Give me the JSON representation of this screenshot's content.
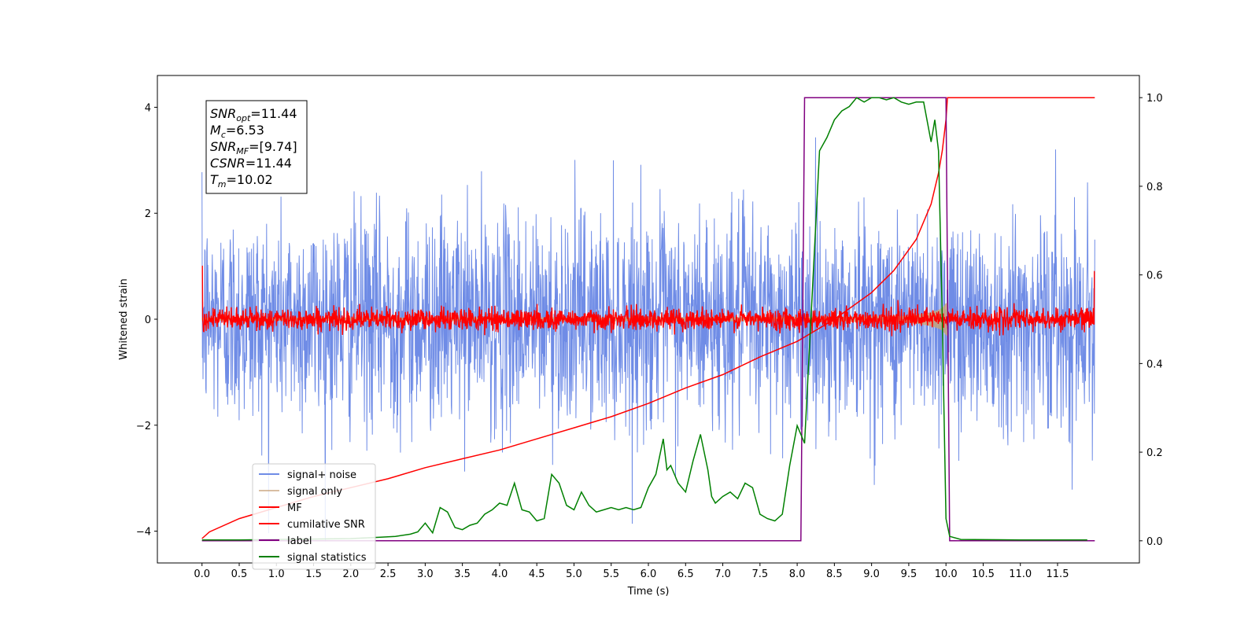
{
  "chart_data": {
    "type": "line",
    "xlabel": "Time (s)",
    "ylabel": "Whitened strain",
    "xlim": [
      -0.6,
      12.6
    ],
    "ylim": [
      -4.6,
      4.6
    ],
    "ylim_right": [
      -0.05,
      1.05
    ],
    "x_ticks": [
      "0.0",
      "0.5",
      "1.0",
      "1.5",
      "2.0",
      "2.5",
      "3.0",
      "3.5",
      "4.0",
      "4.5",
      "5.0",
      "5.5",
      "6.0",
      "6.5",
      "7.0",
      "7.5",
      "8.0",
      "8.5",
      "9.0",
      "9.5",
      "10.0",
      "10.5",
      "11.0",
      "11.5"
    ],
    "y_ticks_left": [
      "4",
      "2",
      "0",
      "−2",
      "−4"
    ],
    "y_ticks_right": [
      "1.0",
      "0.8",
      "0.6",
      "0.4",
      "0.2",
      "0.0"
    ],
    "legend_position": "lower-left",
    "grid": false,
    "info_box": {
      "lines": [
        {
          "sym": "SNR",
          "sub": "opt",
          "value": "=11.44"
        },
        {
          "sym": "M",
          "sub": "c",
          "value": "=6.53"
        },
        {
          "sym": "SNR",
          "sub": "MF",
          "value": "=[9.74]"
        },
        {
          "sym": "CSNR",
          "sub": "",
          "value": "=11.44"
        },
        {
          "sym": "T",
          "sub": "m",
          "value": "=10.02"
        }
      ]
    },
    "series": [
      {
        "name": "signal+ noise",
        "axis": "left",
        "color": "#6f8ce6",
        "kind": "noise",
        "x_range": [
          0,
          12
        ],
        "sigma": 1.0,
        "max_abs": 4.2
      },
      {
        "name": "signal only",
        "axis": "left",
        "color": "#c8a37a",
        "kind": "chirp_envelope",
        "x_range": [
          0,
          10.02
        ],
        "amp_start": 0.03,
        "amp_peak": 0.72,
        "merger": 10.02
      },
      {
        "name": "MF",
        "axis": "left",
        "color": "#ff0000",
        "kind": "noise",
        "x_range": [
          0,
          12
        ],
        "sigma": 0.1,
        "spikes": [
          [
            0.0,
            1.0
          ],
          [
            12.0,
            0.9
          ]
        ]
      },
      {
        "name": "cumilative SNR",
        "axis": "right",
        "color": "#ff0000",
        "x": [
          0.0,
          0.1,
          0.5,
          1.0,
          1.5,
          2.0,
          2.5,
          3.0,
          3.5,
          4.0,
          4.5,
          5.0,
          5.5,
          6.0,
          6.5,
          7.0,
          7.5,
          8.0,
          8.5,
          9.0,
          9.3,
          9.6,
          9.8,
          9.9,
          9.95,
          10.0,
          10.02,
          12.0
        ],
        "y": [
          0.005,
          0.02,
          0.05,
          0.075,
          0.1,
          0.12,
          0.14,
          0.165,
          0.185,
          0.205,
          0.23,
          0.255,
          0.28,
          0.31,
          0.345,
          0.375,
          0.415,
          0.45,
          0.5,
          0.56,
          0.61,
          0.68,
          0.76,
          0.83,
          0.88,
          0.95,
          1.0,
          1.0
        ]
      },
      {
        "name": "label",
        "axis": "right",
        "color": "#800080",
        "x": [
          0.0,
          8.05,
          8.1,
          10.0,
          10.05,
          12.0
        ],
        "y": [
          0.0,
          0.0,
          1.0,
          1.0,
          0.0,
          0.0
        ]
      },
      {
        "name": "signal statistics",
        "axis": "right",
        "color": "#008000",
        "x": [
          0.0,
          0.5,
          1.0,
          1.5,
          2.0,
          2.4,
          2.6,
          2.8,
          2.9,
          3.0,
          3.1,
          3.2,
          3.3,
          3.4,
          3.5,
          3.6,
          3.7,
          3.8,
          3.9,
          4.0,
          4.1,
          4.2,
          4.3,
          4.4,
          4.5,
          4.6,
          4.7,
          4.8,
          4.9,
          5.0,
          5.1,
          5.2,
          5.3,
          5.4,
          5.5,
          5.6,
          5.7,
          5.8,
          5.9,
          6.0,
          6.1,
          6.2,
          6.25,
          6.3,
          6.4,
          6.5,
          6.6,
          6.7,
          6.8,
          6.85,
          6.9,
          7.0,
          7.1,
          7.2,
          7.3,
          7.4,
          7.5,
          7.6,
          7.7,
          7.8,
          7.9,
          8.0,
          8.1,
          8.2,
          8.3,
          8.4,
          8.5,
          8.6,
          8.7,
          8.8,
          8.9,
          9.0,
          9.1,
          9.2,
          9.3,
          9.4,
          9.5,
          9.6,
          9.7,
          9.8,
          9.85,
          9.9,
          9.95,
          10.0,
          10.05,
          10.2,
          11.0,
          11.9
        ],
        "y": [
          0.002,
          0.002,
          0.003,
          0.004,
          0.005,
          0.008,
          0.01,
          0.015,
          0.02,
          0.04,
          0.018,
          0.075,
          0.065,
          0.03,
          0.025,
          0.035,
          0.04,
          0.06,
          0.07,
          0.085,
          0.08,
          0.13,
          0.07,
          0.065,
          0.045,
          0.05,
          0.15,
          0.13,
          0.08,
          0.07,
          0.11,
          0.08,
          0.065,
          0.07,
          0.075,
          0.07,
          0.075,
          0.07,
          0.075,
          0.12,
          0.15,
          0.23,
          0.16,
          0.17,
          0.13,
          0.11,
          0.18,
          0.24,
          0.16,
          0.1,
          0.085,
          0.1,
          0.11,
          0.095,
          0.13,
          0.12,
          0.06,
          0.05,
          0.045,
          0.06,
          0.17,
          0.26,
          0.22,
          0.55,
          0.88,
          0.91,
          0.95,
          0.97,
          0.98,
          1.0,
          0.99,
          1.0,
          1.0,
          0.995,
          1.0,
          0.99,
          0.985,
          0.99,
          0.99,
          0.9,
          0.95,
          0.88,
          0.5,
          0.05,
          0.01,
          0.003,
          0.002,
          0.002
        ]
      }
    ]
  }
}
